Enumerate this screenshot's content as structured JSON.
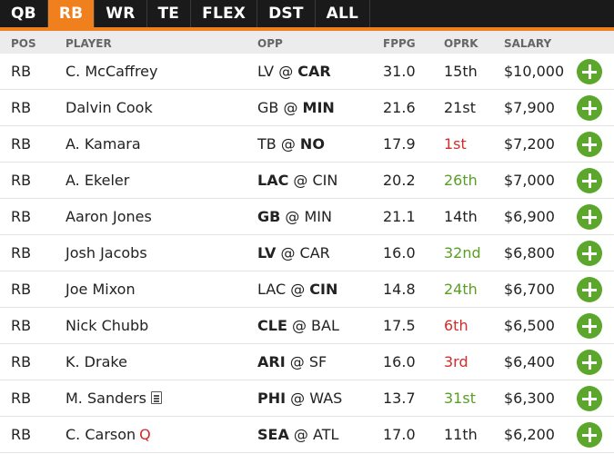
{
  "tabs": [
    {
      "label": "QB",
      "active": false
    },
    {
      "label": "RB",
      "active": true
    },
    {
      "label": "WR",
      "active": false
    },
    {
      "label": "TE",
      "active": false
    },
    {
      "label": "FLEX",
      "active": false
    },
    {
      "label": "DST",
      "active": false
    },
    {
      "label": "ALL",
      "active": false
    }
  ],
  "columns": {
    "pos": "POS",
    "player": "PLAYER",
    "opp": "OPP",
    "fppg": "FPPG",
    "oprk": "OPRK",
    "salary": "SALARY"
  },
  "colors": {
    "accent": "#f07f1e",
    "tab_bar": "#1a1a1a",
    "good_rank": "#5a9e25",
    "bad_rank": "#d62a2a",
    "add_button": "#5aa72b"
  },
  "players": [
    {
      "pos": "RB",
      "name": "C. McCaffrey",
      "away": "LV",
      "home": "CAR",
      "team_side": "home",
      "fppg": "31.0",
      "oprk": "15th",
      "oprk_tier": "neutral",
      "salary": "$10,000",
      "news": false,
      "status": ""
    },
    {
      "pos": "RB",
      "name": "Dalvin Cook",
      "away": "GB",
      "home": "MIN",
      "team_side": "home",
      "fppg": "21.6",
      "oprk": "21st",
      "oprk_tier": "neutral",
      "salary": "$7,900",
      "news": false,
      "status": ""
    },
    {
      "pos": "RB",
      "name": "A. Kamara",
      "away": "TB",
      "home": "NO",
      "team_side": "home",
      "fppg": "17.9",
      "oprk": "1st",
      "oprk_tier": "bad",
      "salary": "$7,200",
      "news": false,
      "status": ""
    },
    {
      "pos": "RB",
      "name": "A. Ekeler",
      "away": "LAC",
      "home": "CIN",
      "team_side": "away",
      "fppg": "20.2",
      "oprk": "26th",
      "oprk_tier": "good",
      "salary": "$7,000",
      "news": false,
      "status": ""
    },
    {
      "pos": "RB",
      "name": "Aaron Jones",
      "away": "GB",
      "home": "MIN",
      "team_side": "away",
      "fppg": "21.1",
      "oprk": "14th",
      "oprk_tier": "neutral",
      "salary": "$6,900",
      "news": false,
      "status": ""
    },
    {
      "pos": "RB",
      "name": "Josh Jacobs",
      "away": "LV",
      "home": "CAR",
      "team_side": "away",
      "fppg": "16.0",
      "oprk": "32nd",
      "oprk_tier": "good",
      "salary": "$6,800",
      "news": false,
      "status": ""
    },
    {
      "pos": "RB",
      "name": "Joe Mixon",
      "away": "LAC",
      "home": "CIN",
      "team_side": "home",
      "fppg": "14.8",
      "oprk": "24th",
      "oprk_tier": "good",
      "salary": "$6,700",
      "news": false,
      "status": ""
    },
    {
      "pos": "RB",
      "name": "Nick Chubb",
      "away": "CLE",
      "home": "BAL",
      "team_side": "away",
      "fppg": "17.5",
      "oprk": "6th",
      "oprk_tier": "bad",
      "salary": "$6,500",
      "news": false,
      "status": ""
    },
    {
      "pos": "RB",
      "name": "K. Drake",
      "away": "ARI",
      "home": "SF",
      "team_side": "away",
      "fppg": "16.0",
      "oprk": "3rd",
      "oprk_tier": "bad",
      "salary": "$6,400",
      "news": false,
      "status": ""
    },
    {
      "pos": "RB",
      "name": "M. Sanders",
      "away": "PHI",
      "home": "WAS",
      "team_side": "away",
      "fppg": "13.7",
      "oprk": "31st",
      "oprk_tier": "good",
      "salary": "$6,300",
      "news": true,
      "status": ""
    },
    {
      "pos": "RB",
      "name": "C. Carson",
      "away": "SEA",
      "home": "ATL",
      "team_side": "away",
      "fppg": "17.0",
      "oprk": "11th",
      "oprk_tier": "neutral",
      "salary": "$6,200",
      "news": false,
      "status": "Q"
    }
  ]
}
